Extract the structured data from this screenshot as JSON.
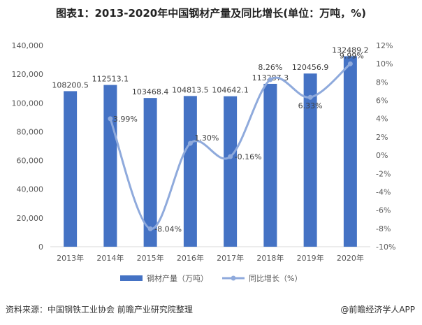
{
  "title": "图表1：2013-2020年中国钢材产量及同比增长(单位：万吨，%)",
  "source": "资料来源：中国钢铁工业协会 前瞻产业研究院整理",
  "brand": "@前瞻经济学人APP",
  "colors": {
    "bar": "#4472C4",
    "line": "#8FAADC"
  },
  "chart_data": {
    "type": "bar+line",
    "categories": [
      "2013年",
      "2014年",
      "2015年",
      "2016年",
      "2017年",
      "2018年",
      "2019年",
      "2020年"
    ],
    "series": [
      {
        "name": "钢材产量（万吨）",
        "type": "bar",
        "axis": "left",
        "values": [
          108200.5,
          112513.1,
          103468.4,
          104813.5,
          104642.1,
          113287.3,
          120456.9,
          132489.2
        ],
        "labels": [
          "108200.5",
          "112513.1",
          "103468.4",
          "104813.5",
          "104642.1",
          "113287.3",
          "120456.9",
          "132489.2"
        ]
      },
      {
        "name": "同比增长（%）",
        "type": "line",
        "axis": "right",
        "values": [
          null,
          3.99,
          -8.04,
          1.3,
          -0.16,
          8.26,
          6.33,
          9.99
        ],
        "labels": [
          "",
          "3.99%",
          "-8.04%",
          "1.30%",
          "-0.16%",
          "8.26%",
          "6.33%",
          "9.99%"
        ]
      }
    ],
    "left_axis": {
      "min": 0,
      "max": 140000,
      "step": 20000,
      "ticks": [
        "0",
        "20,000",
        "40,000",
        "60,000",
        "80,000",
        "100,000",
        "120,000",
        "140,000"
      ]
    },
    "right_axis": {
      "min": -10,
      "max": 12,
      "step": 2,
      "ticks": [
        "-10%",
        "-8%",
        "-6%",
        "-4%",
        "-2%",
        "0%",
        "2%",
        "4%",
        "6%",
        "8%",
        "10%",
        "12%"
      ]
    },
    "legend_position": "bottom-center"
  }
}
